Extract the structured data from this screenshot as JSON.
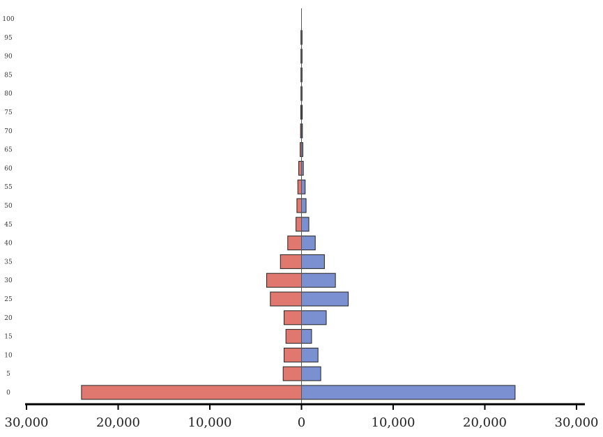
{
  "chart_data": {
    "type": "bar",
    "orientation": "horizontal",
    "subtype": "population-pyramid",
    "categories": [
      0,
      5,
      10,
      15,
      20,
      25,
      30,
      35,
      40,
      45,
      50,
      55,
      60,
      65,
      70,
      75,
      80,
      85,
      90,
      95,
      100
    ],
    "series": [
      {
        "side": "left",
        "color": "#e0786f",
        "values": [
          24000,
          2000,
          1900,
          1700,
          1900,
          3400,
          3800,
          2300,
          1500,
          600,
          500,
          400,
          300,
          150,
          100,
          80,
          60,
          40,
          30,
          20,
          0
        ]
      },
      {
        "side": "right",
        "color": "#7b90d0",
        "values": [
          23300,
          2100,
          1800,
          1100,
          2700,
          5100,
          3700,
          2500,
          1500,
          800,
          500,
          400,
          200,
          150,
          100,
          80,
          60,
          40,
          30,
          20,
          0
        ]
      }
    ],
    "xlim": [
      -30000,
      30000
    ],
    "x_ticks": [
      "30,000",
      "20,000",
      "10,000",
      "0",
      "10,000",
      "20,000",
      "30,000"
    ],
    "y_ticks": [
      "0",
      "5",
      "10",
      "15",
      "20",
      "25",
      "30",
      "35",
      "40",
      "45",
      "50",
      "55",
      "60",
      "65",
      "70",
      "75",
      "80",
      "85",
      "90",
      "95",
      "100"
    ],
    "grid": false,
    "legend": "none",
    "title": "",
    "xlabel": "",
    "ylabel": ""
  }
}
